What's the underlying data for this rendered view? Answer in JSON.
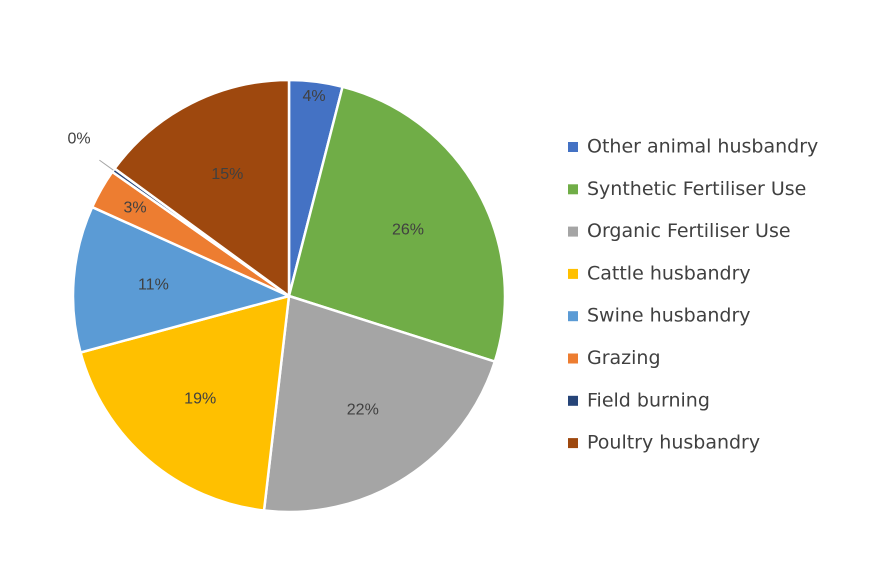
{
  "chart_data": {
    "type": "pie",
    "title": "",
    "legend_position": "right",
    "slices": [
      {
        "name": "Other animal husbandry",
        "value": 4,
        "label": "4%",
        "color": "#4472C4"
      },
      {
        "name": "Synthetic Fertiliser Use",
        "value": 26,
        "label": "26%",
        "color": "#70AD47"
      },
      {
        "name": "Organic Fertiliser Use",
        "value": 22,
        "label": "22%",
        "color": "#A5A5A5"
      },
      {
        "name": "Cattle husbandry",
        "value": 19,
        "label": "19%",
        "color": "#FFC000"
      },
      {
        "name": "Swine husbandry",
        "value": 11,
        "label": "11%",
        "color": "#5B9BD5"
      },
      {
        "name": "Grazing",
        "value": 3,
        "label": "3%",
        "color": "#ED7D31"
      },
      {
        "name": "Field burning",
        "value": 0.3,
        "label": "0%",
        "color": "#264478"
      },
      {
        "name": "Poultry husbandry",
        "value": 15,
        "label": "15%",
        "color": "#9E480E"
      }
    ]
  }
}
